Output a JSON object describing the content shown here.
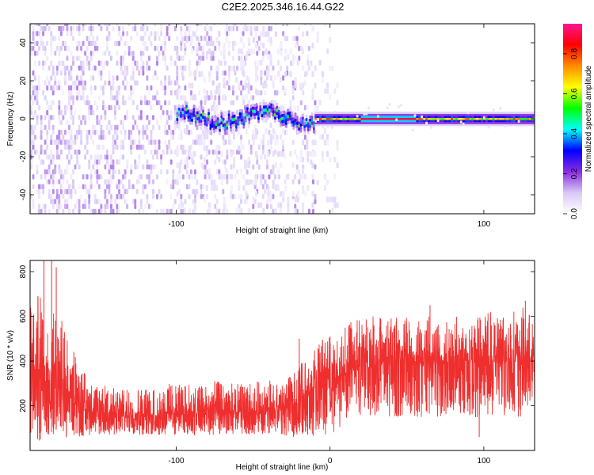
{
  "title": "C2E2.2025.346.16.44.G22",
  "colors": {
    "snr_trace": "#ef2e2e",
    "background_fill": "#ffffff",
    "frame": "#000000"
  },
  "chart_data": [
    {
      "id": "spectrogram",
      "type": "heatmap",
      "title": "",
      "xlabel": "Height of straight line (km)",
      "ylabel": "Frequency (Hz)",
      "xlim": [
        -195,
        133
      ],
      "ylim": [
        -50,
        50
      ],
      "xticks": [
        -100,
        0,
        100
      ],
      "xtick_labels": [
        "-100",
        "",
        "100"
      ],
      "yticks": [
        -40,
        -20,
        0,
        20,
        40
      ],
      "ytick_labels": [
        "-40",
        "-20",
        "0",
        "20",
        "40"
      ],
      "grid": false,
      "colorbar": {
        "label": "Normalized spectral amplitude",
        "range": [
          0.0,
          0.95
        ],
        "ticks": [
          0.0,
          0.2,
          0.4,
          0.6,
          0.8
        ],
        "tick_labels": [
          "0.0",
          "0.2",
          "0.4",
          "0.6",
          "0.8"
        ],
        "colormap": [
          "#ffffff",
          "#d8c8f6",
          "#8a2be2",
          "#0000ff",
          "#00ffff",
          "#00ff00",
          "#ffff00",
          "#ff8c00",
          "#ff0000",
          "#ff1493"
        ]
      },
      "features": [
        {
          "kind": "scattered_noise",
          "x_range": [
            -195,
            -10
          ],
          "y_range": [
            -50,
            50
          ],
          "amplitude": 0.12
        },
        {
          "kind": "fading_noise",
          "x_range": [
            -100,
            5
          ],
          "y_range": [
            -50,
            50
          ],
          "amplitude": 0.05
        },
        {
          "kind": "wandering_tone",
          "x_range": [
            -100,
            -10
          ],
          "center_hz": 0,
          "wander_hz": 5,
          "amplitude": 0.25
        },
        {
          "kind": "stable_tone",
          "x_range": [
            -10,
            133
          ],
          "center_hz": 0,
          "amplitude": 0.9,
          "peak_x_range": [
            20,
            55
          ]
        }
      ]
    },
    {
      "id": "snr",
      "type": "line",
      "title": "",
      "xlabel": "Height of straight line (km)",
      "ylabel": "SNR (10 * v/v)",
      "xlim": [
        -195,
        133
      ],
      "ylim": [
        0,
        850
      ],
      "xticks": [
        -100,
        0,
        100
      ],
      "xtick_labels": [
        "-100",
        "0",
        "100"
      ],
      "yticks": [
        200,
        400,
        600,
        800
      ],
      "ytick_labels": [
        "200",
        "400",
        "600",
        "800"
      ],
      "grid": false,
      "series": [
        {
          "x": [
            -195,
            -185,
            -175,
            -165,
            -155,
            -145,
            -135,
            -125,
            -115,
            -105,
            -95,
            -85,
            -75,
            -65,
            -55,
            -45,
            -35,
            -25,
            -20,
            -15,
            -10,
            -5,
            0,
            5,
            10,
            15,
            25,
            35,
            45,
            55,
            65,
            75,
            85,
            95,
            105,
            115,
            125,
            133
          ],
          "low": [
            40,
            40,
            60,
            60,
            70,
            70,
            70,
            70,
            70,
            70,
            70,
            70,
            70,
            70,
            70,
            70,
            70,
            60,
            60,
            60,
            60,
            50,
            40,
            100,
            120,
            150,
            160,
            150,
            150,
            150,
            150,
            150,
            150,
            150,
            150,
            150,
            150,
            160
          ],
          "high": [
            680,
            720,
            600,
            420,
            300,
            290,
            270,
            280,
            280,
            300,
            300,
            290,
            310,
            300,
            300,
            310,
            320,
            330,
            390,
            410,
            450,
            500,
            540,
            520,
            560,
            580,
            600,
            600,
            600,
            600,
            600,
            600,
            600,
            600,
            620,
            620,
            640,
            600
          ],
          "mid": [
            330,
            300,
            260,
            200,
            170,
            160,
            150,
            150,
            150,
            160,
            160,
            160,
            165,
            160,
            160,
            160,
            170,
            190,
            210,
            240,
            280,
            300,
            330,
            310,
            330,
            350,
            370,
            380,
            380,
            380,
            370,
            380,
            390,
            390,
            390,
            390,
            400,
            400
          ],
          "spikes": [
            {
              "x": -186,
              "y": 850
            },
            {
              "x": -181,
              "y": 850
            },
            {
              "x": -178,
              "y": 820
            },
            {
              "x": -20,
              "y": 500
            },
            {
              "x": 0,
              "y": 510
            },
            {
              "x": 65,
              "y": 650
            },
            {
              "x": 97,
              "y": 60
            },
            {
              "x": 127,
              "y": 670
            }
          ]
        }
      ]
    }
  ]
}
